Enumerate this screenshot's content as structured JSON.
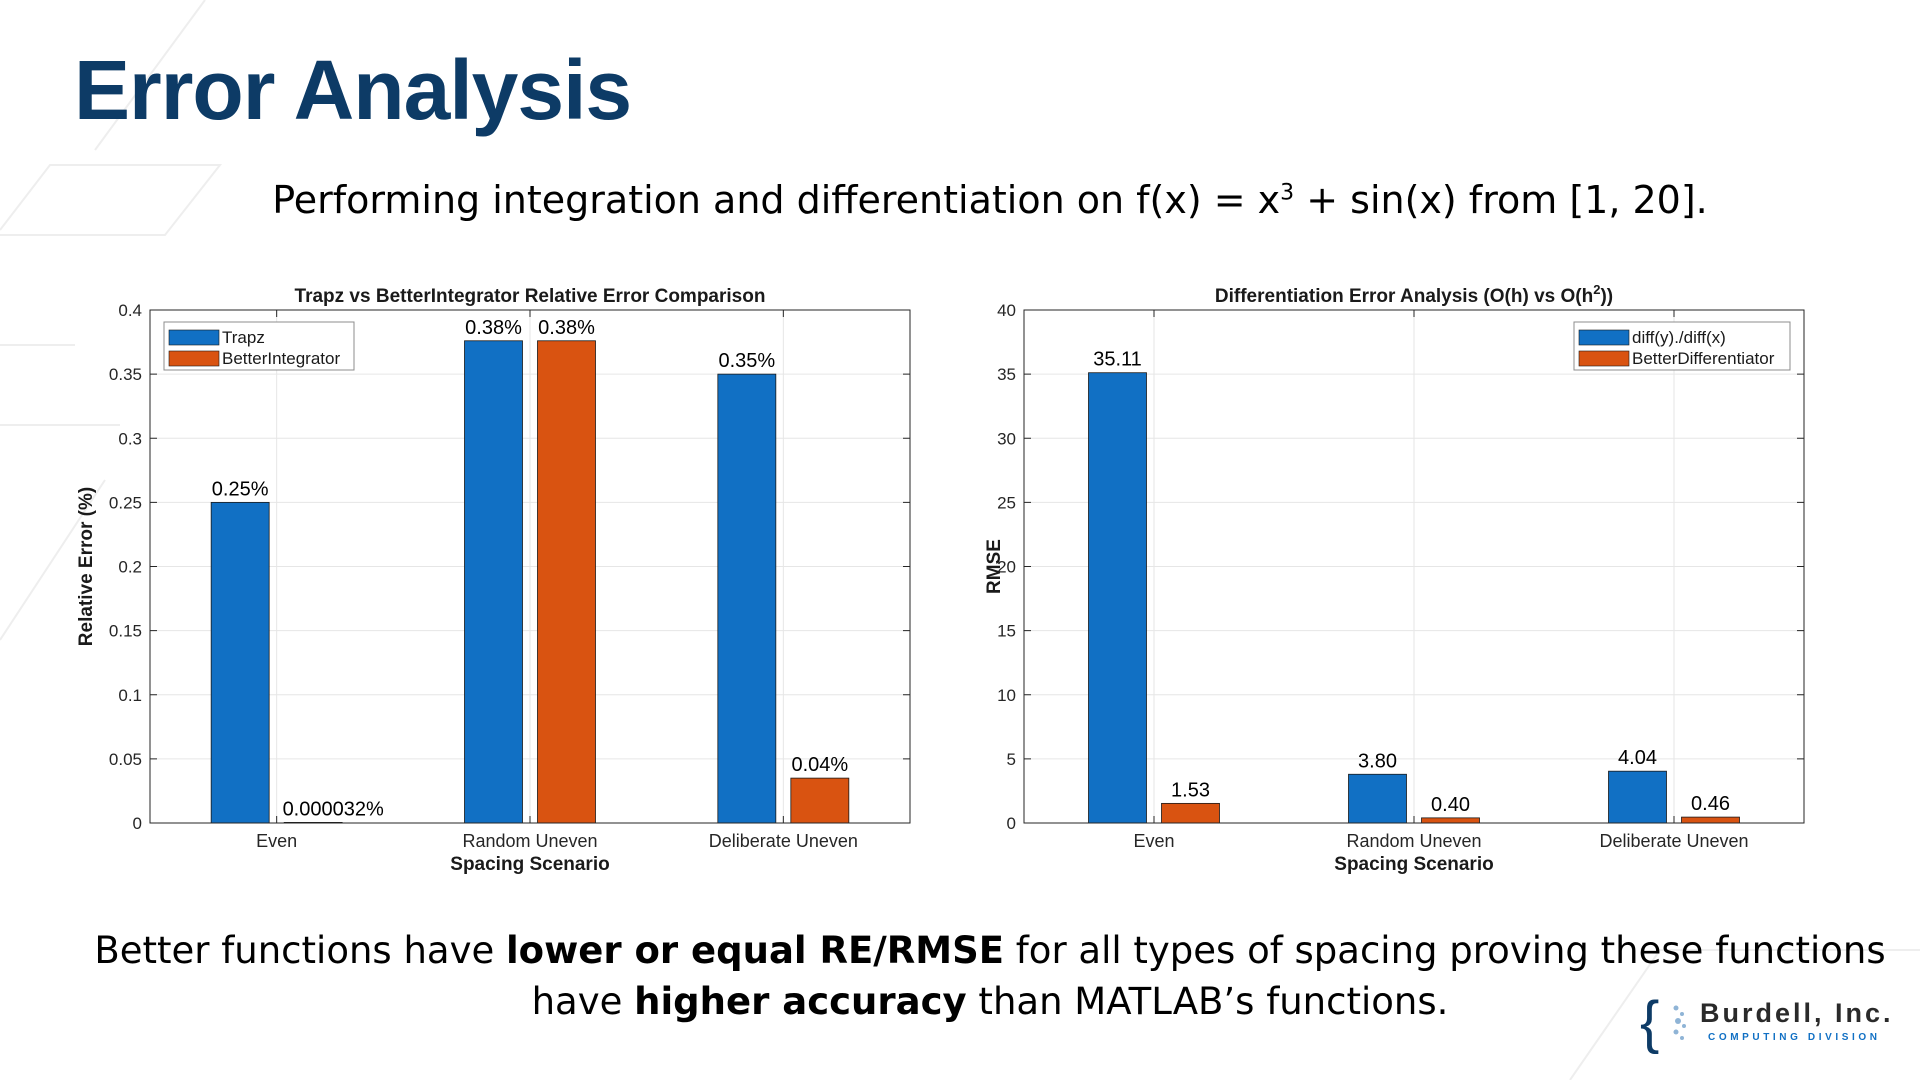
{
  "slide": {
    "title": "Error Analysis",
    "subtitle": {
      "before": "Performing integration and differentiation on f(x) = x",
      "exponent": "3",
      "after": " + sin(x) from [1, 20]."
    },
    "conclusion": {
      "part1": "Better functions have ",
      "bold1": "lower or equal RE/RMSE",
      "part2": " for all types of spacing proving these functions have ",
      "bold2": "higher accuracy",
      "part3": " than MATLAB’s functions."
    },
    "logo": {
      "brace": "{",
      "name": "Burdell, Inc.",
      "division": "COMPUTING DIVISION"
    }
  },
  "colors": {
    "title": "#0d3b66",
    "series_blue": "#1170c4",
    "series_orange": "#d95311",
    "grid": "#e6e6e6",
    "axis": "#262626"
  },
  "chart_data": [
    {
      "type": "bar",
      "title": "Trapz vs BetterIntegrator Relative Error Comparison",
      "xlabel": "Spacing Scenario",
      "ylabel": "Relative Error (%)",
      "categories": [
        "Even",
        "Random Uneven",
        "Deliberate Uneven"
      ],
      "ylim": [
        0,
        0.4
      ],
      "yticks": [
        0,
        0.05,
        0.1,
        0.15,
        0.2,
        0.25,
        0.3,
        0.35,
        0.4
      ],
      "ytick_labels": [
        "0",
        "0.05",
        "0.1",
        "0.15",
        "0.2",
        "0.25",
        "0.3",
        "0.35",
        "0.4"
      ],
      "grid": true,
      "legend_position": "top-left",
      "series": [
        {
          "name": "Trapz",
          "color": "#1170c4",
          "values": [
            0.25,
            0.376,
            0.35
          ],
          "labels": [
            "0.25%",
            "0.38%",
            "0.35%"
          ]
        },
        {
          "name": "BetterIntegrator",
          "color": "#d95311",
          "values": [
            3.2e-05,
            0.376,
            0.035
          ],
          "labels": [
            "0.000032%",
            "0.38%",
            "0.04%"
          ]
        }
      ]
    },
    {
      "type": "bar",
      "title": "Differentiation  Error  Analysis  (O(h)  vs  O(h",
      "title_sup": "2",
      "title_end": "))",
      "xlabel": "Spacing Scenario",
      "ylabel": "RMSE",
      "categories": [
        "Even",
        "Random Uneven",
        "Deliberate Uneven"
      ],
      "ylim": [
        0,
        40
      ],
      "yticks": [
        0,
        5,
        10,
        15,
        20,
        25,
        30,
        35,
        40
      ],
      "ytick_labels": [
        "0",
        "5",
        "10",
        "15",
        "20",
        "25",
        "30",
        "35",
        "40"
      ],
      "grid": true,
      "legend_position": "top-right",
      "series": [
        {
          "name": "diff(y)./diff(x)",
          "color": "#1170c4",
          "values": [
            35.11,
            3.8,
            4.04
          ],
          "labels": [
            "35.11",
            "3.80",
            "4.04"
          ]
        },
        {
          "name": "BetterDifferentiator",
          "color": "#d95311",
          "values": [
            1.53,
            0.4,
            0.46
          ],
          "labels": [
            "1.53",
            "0.40",
            "0.46"
          ]
        }
      ]
    }
  ]
}
